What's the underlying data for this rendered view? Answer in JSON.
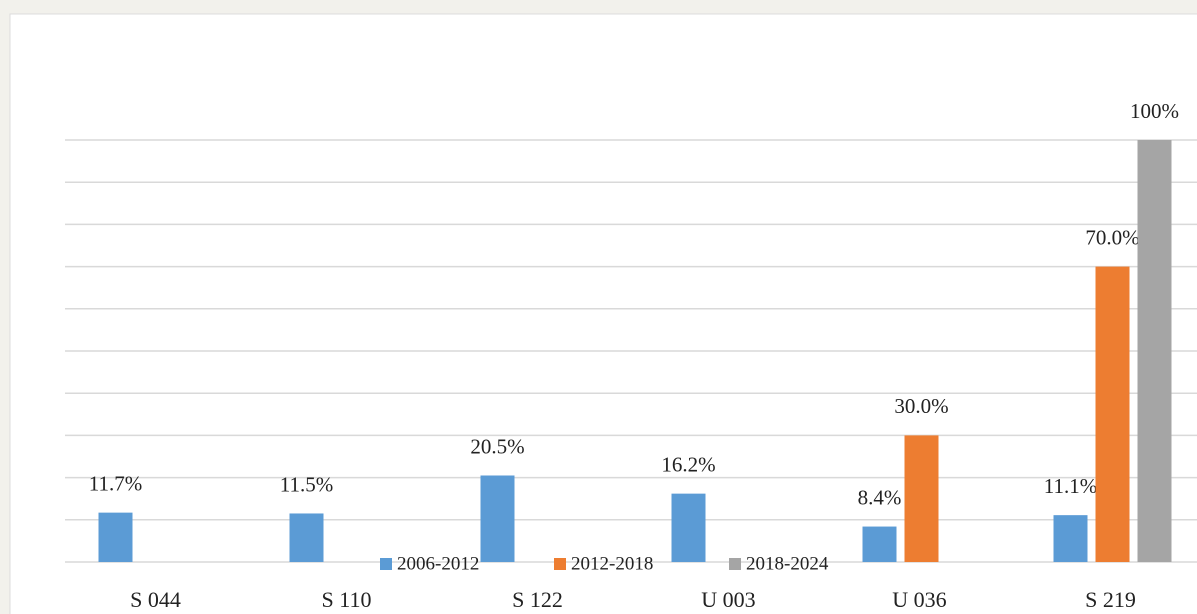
{
  "chart_data": {
    "type": "bar",
    "categories": [
      "S 044",
      "S 110",
      "S 122",
      "U 003",
      "U 036",
      "S 219"
    ],
    "series": [
      {
        "name": "2006-2012",
        "color": "#5b9bd5",
        "values": [
          11.7,
          11.5,
          20.5,
          16.2,
          8.4,
          11.1
        ],
        "value_labels": [
          "11.7%",
          "11.5%",
          "20.5%",
          "16.2%",
          "8.4%",
          "11.1%"
        ]
      },
      {
        "name": "2012-2018",
        "color": "#ed7d31",
        "values": [
          null,
          null,
          null,
          null,
          30.0,
          70.0
        ],
        "value_labels": [
          null,
          null,
          null,
          null,
          "30.0%",
          "70.0%"
        ]
      },
      {
        "name": "2018-2024",
        "color": "#a5a5a5",
        "values": [
          null,
          null,
          null,
          null,
          null,
          100
        ],
        "value_labels": [
          null,
          null,
          null,
          null,
          null,
          "100%"
        ]
      }
    ],
    "ylim": [
      0,
      100
    ],
    "yticks": [
      0,
      10,
      20,
      30,
      40,
      50,
      60,
      70,
      80,
      90,
      100
    ],
    "grid": true,
    "legend": "bottom"
  }
}
